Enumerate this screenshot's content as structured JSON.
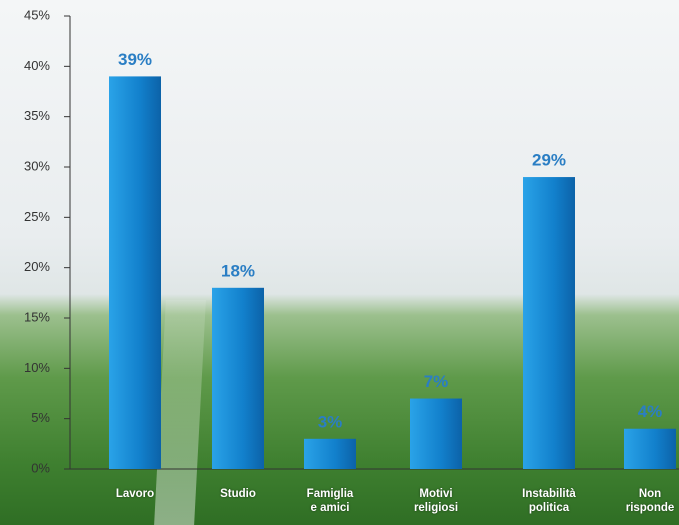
{
  "chart_data": {
    "type": "bar",
    "categories": [
      "Lavoro",
      "Studio",
      "Famiglia e amici",
      "Motivi religiosi",
      "Instabilità politica",
      "Non risponde"
    ],
    "values": [
      39,
      18,
      3,
      7,
      29,
      4
    ],
    "value_labels": [
      "39%",
      "18%",
      "3%",
      "7%",
      "29%",
      "4%"
    ],
    "color": "#1a8ad4",
    "ylim": [
      0,
      45
    ],
    "yticks": [
      {
        "value": 0,
        "label": "0%"
      },
      {
        "value": 5,
        "label": "5%"
      },
      {
        "value": 10,
        "label": "10%"
      },
      {
        "value": 15,
        "label": "15%"
      },
      {
        "value": 20,
        "label": "20%"
      },
      {
        "value": 25,
        "label": "25%"
      },
      {
        "value": 30,
        "label": "30%"
      },
      {
        "value": 35,
        "label": "35%"
      },
      {
        "value": 40,
        "label": "40%"
      },
      {
        "value": 45,
        "label": "45%"
      }
    ]
  }
}
